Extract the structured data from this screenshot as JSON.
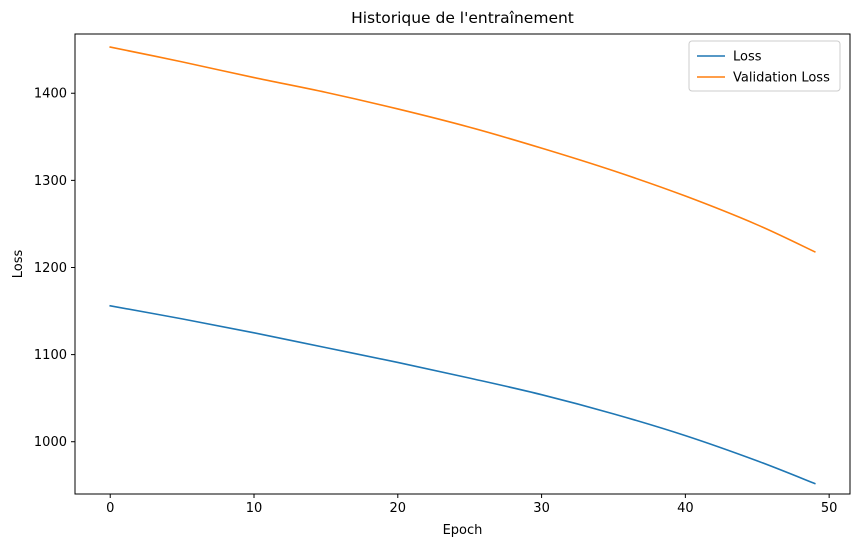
{
  "chart_data": {
    "type": "line",
    "title": "Historique de l'entraînement",
    "xlabel": "Epoch",
    "ylabel": "Loss",
    "xlim": [
      -2.45,
      51.45
    ],
    "ylim": [
      940,
      1468
    ],
    "xticks": [
      0,
      10,
      20,
      30,
      40,
      50
    ],
    "yticks": [
      1000,
      1100,
      1200,
      1300,
      1400
    ],
    "xtick_labels": [
      "0",
      "10",
      "20",
      "30",
      "40",
      "50"
    ],
    "ytick_labels": [
      "1000",
      "1100",
      "1200",
      "1300",
      "1400"
    ],
    "grid": false,
    "legend_position": "top-right",
    "x_range": [
      0,
      49
    ],
    "series": [
      {
        "name": "Loss",
        "color": "#1f77b4",
        "x": [
          0,
          5,
          10,
          15,
          20,
          25,
          30,
          35,
          40,
          45,
          49
        ],
        "y": [
          1156,
          1141,
          1125,
          1108,
          1091,
          1073,
          1054,
          1032,
          1007,
          978,
          952
        ]
      },
      {
        "name": "Validation Loss",
        "color": "#ff7f0e",
        "x": [
          0,
          5,
          10,
          15,
          20,
          25,
          30,
          35,
          40,
          45,
          49
        ],
        "y": [
          1453,
          1436,
          1418,
          1401,
          1382,
          1361,
          1337,
          1311,
          1282,
          1249,
          1218
        ]
      }
    ]
  }
}
